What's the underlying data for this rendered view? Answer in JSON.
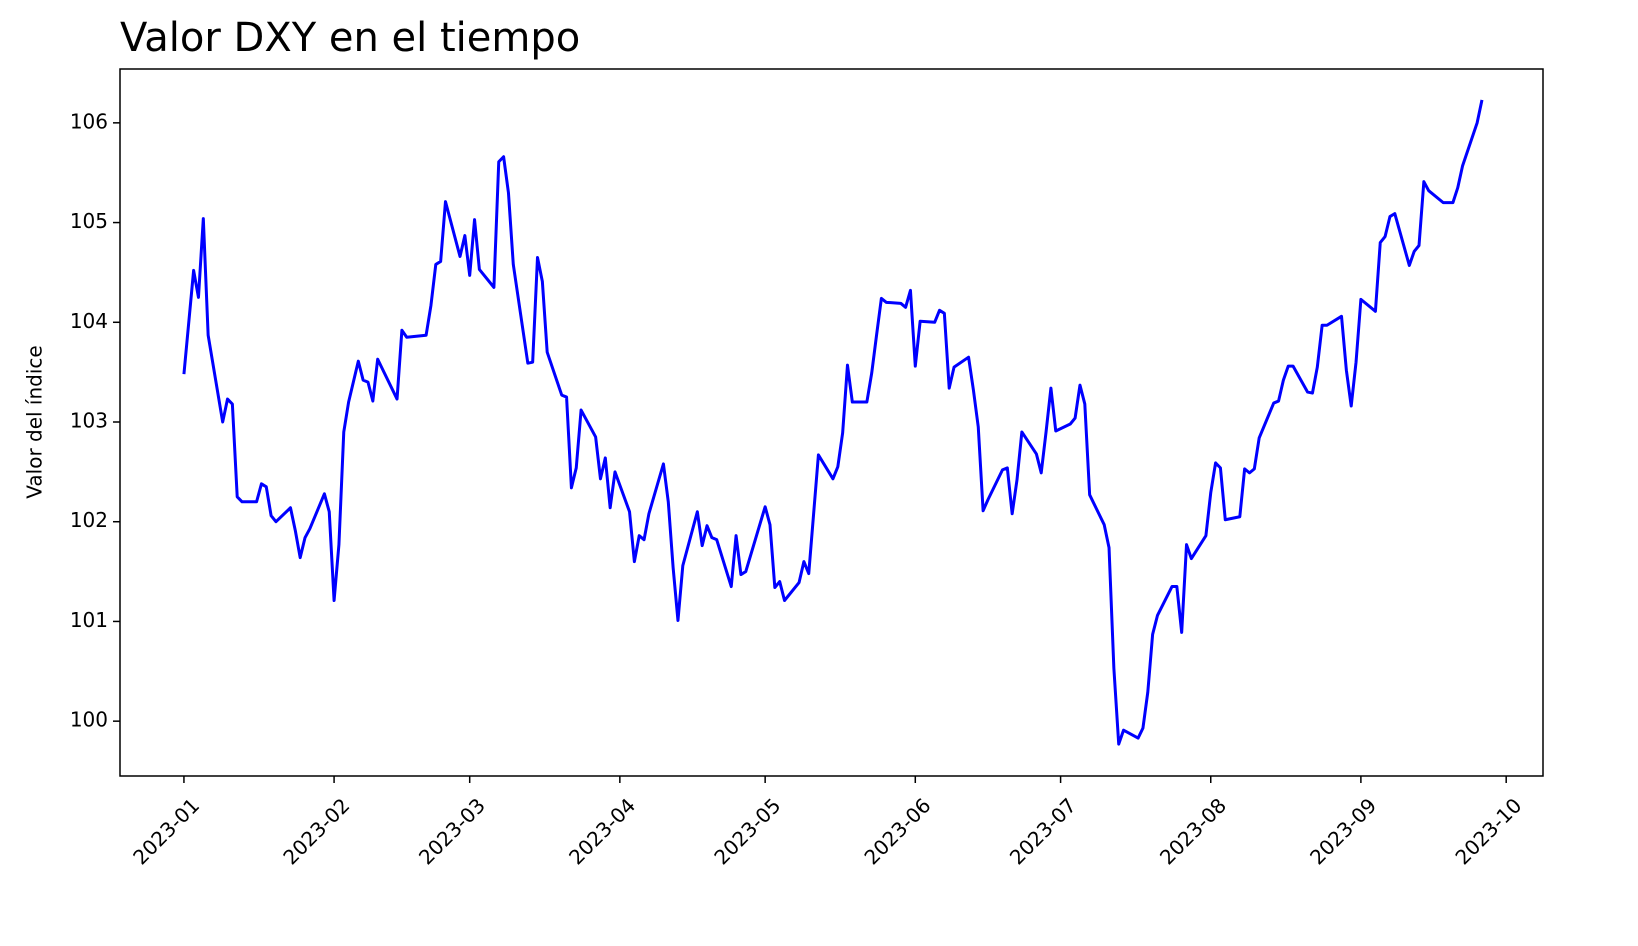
{
  "chart_data": {
    "type": "line",
    "title": "Valor DXY en el tiempo",
    "y_label": "Valor del índice",
    "color": "#0000ff",
    "x": [
      0,
      2,
      3,
      4,
      5,
      8,
      9,
      10,
      11,
      12,
      15,
      16,
      17,
      18,
      19,
      22,
      23,
      24,
      25,
      26,
      29,
      30,
      31,
      32,
      33,
      34,
      36,
      37,
      38,
      39,
      40,
      44,
      45,
      46,
      50,
      51,
      52,
      53,
      54,
      57,
      58,
      59,
      60,
      61,
      64,
      65,
      66,
      67,
      68,
      71,
      72,
      73,
      74,
      75,
      78,
      79,
      80,
      81,
      82,
      85,
      86,
      87,
      88,
      89,
      92,
      93,
      94,
      95,
      96,
      99,
      100,
      101,
      102,
      103,
      106,
      107,
      108,
      109,
      110,
      113,
      114,
      115,
      116,
      120,
      121,
      122,
      123,
      124,
      127,
      128,
      129,
      131,
      134,
      135,
      136,
      137,
      138,
      141,
      142,
      143,
      144,
      145,
      148,
      149,
      150,
      151,
      152,
      155,
      156,
      157,
      158,
      159,
      162,
      163,
      164,
      165,
      166,
      169,
      170,
      171,
      172,
      173,
      176,
      177,
      178,
      179,
      180,
      183,
      184,
      185,
      186,
      187,
      190,
      191,
      192,
      193,
      194,
      197,
      198,
      199,
      200,
      201,
      204,
      205,
      206,
      207,
      208,
      211,
      212,
      213,
      214,
      215,
      218,
      219,
      220,
      221,
      222,
      225,
      226,
      227,
      228,
      229,
      232,
      233,
      234,
      235,
      236,
      239,
      240,
      241,
      242,
      243,
      246,
      247,
      248,
      249,
      250,
      253,
      254,
      255,
      256,
      257,
      260,
      261,
      262,
      263,
      264,
      267,
      268
    ],
    "values": [
      103.48,
      104.52,
      104.25,
      105.04,
      103.87,
      103.0,
      103.23,
      103.18,
      102.25,
      102.2,
      102.2,
      102.38,
      102.35,
      102.06,
      102.0,
      102.14,
      101.91,
      101.64,
      101.84,
      101.93,
      102.28,
      102.1,
      101.21,
      101.77,
      102.9,
      103.2,
      103.61,
      103.42,
      103.4,
      103.21,
      103.63,
      103.23,
      103.92,
      103.85,
      103.87,
      104.17,
      104.58,
      104.61,
      105.21,
      104.66,
      104.87,
      104.47,
      105.03,
      104.53,
      104.35,
      105.61,
      105.66,
      105.3,
      104.58,
      103.59,
      103.6,
      104.65,
      104.41,
      103.7,
      103.27,
      103.25,
      102.34,
      102.54,
      103.12,
      102.85,
      102.43,
      102.64,
      102.14,
      102.5,
      102.1,
      101.6,
      101.86,
      101.82,
      102.08,
      102.58,
      102.2,
      101.54,
      101.01,
      101.56,
      102.1,
      101.76,
      101.96,
      101.84,
      101.82,
      101.35,
      101.86,
      101.47,
      101.5,
      102.15,
      101.97,
      101.34,
      101.4,
      101.21,
      101.39,
      101.6,
      101.48,
      102.67,
      102.43,
      102.55,
      102.89,
      103.57,
      103.2,
      103.2,
      103.49,
      103.87,
      104.24,
      104.2,
      104.19,
      104.15,
      104.32,
      103.56,
      104.01,
      104.0,
      104.12,
      104.09,
      103.34,
      103.55,
      103.65,
      103.32,
      102.95,
      102.11,
      102.22,
      102.52,
      102.54,
      102.08,
      102.42,
      102.9,
      102.68,
      102.49,
      102.9,
      103.34,
      102.91,
      102.98,
      103.04,
      103.37,
      103.18,
      102.27,
      101.97,
      101.74,
      100.53,
      99.77,
      99.91,
      99.83,
      99.93,
      100.29,
      100.87,
      101.06,
      101.35,
      101.35,
      100.89,
      101.77,
      101.63,
      101.86,
      102.29,
      102.59,
      102.54,
      102.02,
      102.05,
      102.53,
      102.49,
      102.53,
      102.84,
      103.19,
      103.21,
      103.42,
      103.56,
      103.56,
      103.3,
      103.29,
      103.55,
      103.97,
      103.97,
      104.06,
      103.52,
      103.16,
      103.6,
      104.23,
      104.11,
      104.8,
      104.86,
      105.06,
      105.09,
      104.57,
      104.71,
      104.77,
      105.41,
      105.32,
      105.2,
      105.2,
      105.2,
      105.35,
      105.57,
      106.0,
      106.23
    ],
    "xlim": [
      -13.2,
      280.6
    ],
    "xticks": [
      {
        "value": 0,
        "label": "2023-01"
      },
      {
        "value": 31,
        "label": "2023-02"
      },
      {
        "value": 59,
        "label": "2023-03"
      },
      {
        "value": 90,
        "label": "2023-04"
      },
      {
        "value": 120,
        "label": "2023-05"
      },
      {
        "value": 151,
        "label": "2023-06"
      },
      {
        "value": 181,
        "label": "2023-07"
      },
      {
        "value": 212,
        "label": "2023-08"
      },
      {
        "value": 243,
        "label": "2023-09"
      },
      {
        "value": 273,
        "label": "2023-10"
      }
    ],
    "ylim": [
      99.45,
      106.54
    ],
    "yticks": [
      100,
      101,
      102,
      103,
      104,
      105,
      106
    ]
  }
}
